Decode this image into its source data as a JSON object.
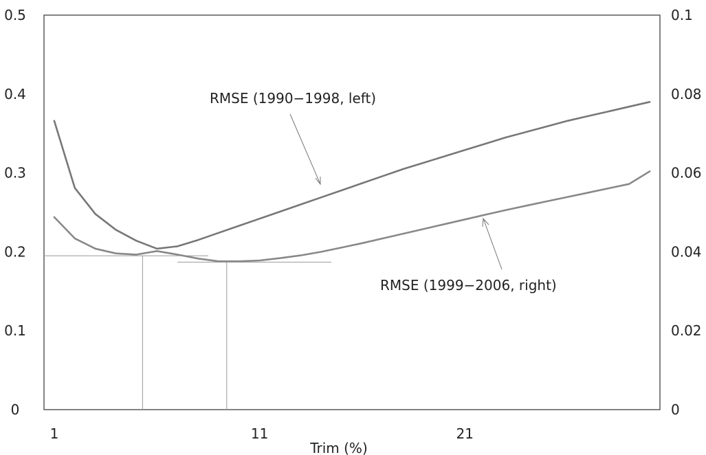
{
  "chart_data": {
    "type": "line",
    "xlabel": "Trim (%)",
    "x_ticks": [
      "1",
      "11",
      "21"
    ],
    "xlim": [
      0.5,
      30.5
    ],
    "y_left_ticks": [
      "0",
      "0.1",
      "0.2",
      "0.3",
      "0.4",
      "0.5"
    ],
    "y_left_lim": [
      0,
      0.5
    ],
    "y_right_ticks": [
      "0",
      "0.02",
      "0.04",
      "0.06",
      "0.08",
      "0.1"
    ],
    "y_right_lim": [
      0,
      0.1
    ],
    "grid": false,
    "x": [
      1,
      2,
      3,
      4,
      5,
      6,
      7,
      8,
      9,
      10,
      11,
      12,
      13,
      14,
      15,
      16,
      17,
      18,
      19,
      20,
      21,
      22,
      23,
      24,
      25,
      26,
      27,
      28,
      29,
      30
    ],
    "series": [
      {
        "name": "RMSE (1990-1998, left)",
        "axis": "left",
        "color": "#777777",
        "values": [
          0.366,
          0.281,
          0.248,
          0.228,
          0.214,
          0.204,
          0.207,
          0.215,
          0.224,
          0.233,
          0.242,
          0.251,
          0.26,
          0.269,
          0.278,
          0.287,
          0.296,
          0.305,
          0.313,
          0.321,
          0.329,
          0.337,
          0.345,
          0.352,
          0.359,
          0.366,
          0.372,
          0.378,
          0.384,
          0.39
        ]
      },
      {
        "name": "RMSE (1999-2006, right)",
        "axis": "right",
        "color": "#888888",
        "values": [
          0.0488,
          0.0434,
          0.0408,
          0.0396,
          0.0393,
          0.0402,
          0.0393,
          0.0383,
          0.0376,
          0.0376,
          0.0378,
          0.0384,
          0.0391,
          0.04,
          0.0411,
          0.0422,
          0.0434,
          0.0446,
          0.0458,
          0.047,
          0.0482,
          0.0494,
          0.0506,
          0.0517,
          0.0528,
          0.0539,
          0.055,
          0.0561,
          0.0572,
          0.0604
        ]
      }
    ],
    "reference_lines": [
      {
        "axis": "left",
        "y": 0.195,
        "x_range": [
          0.5,
          8.5
        ]
      },
      {
        "axis": "left",
        "x": 5.3,
        "y_range": [
          0,
          0.195
        ]
      },
      {
        "axis": "right",
        "y": 0.0374,
        "x_range": [
          7.0,
          14.5
        ]
      },
      {
        "axis": "right",
        "x": 9.4,
        "y_range": [
          0,
          0.0374
        ]
      }
    ],
    "annotations": [
      {
        "text": "RMSE (1990−1998, left)",
        "series_index": 0
      },
      {
        "text": "RMSE (1999−2006, right)",
        "series_index": 1
      }
    ]
  }
}
